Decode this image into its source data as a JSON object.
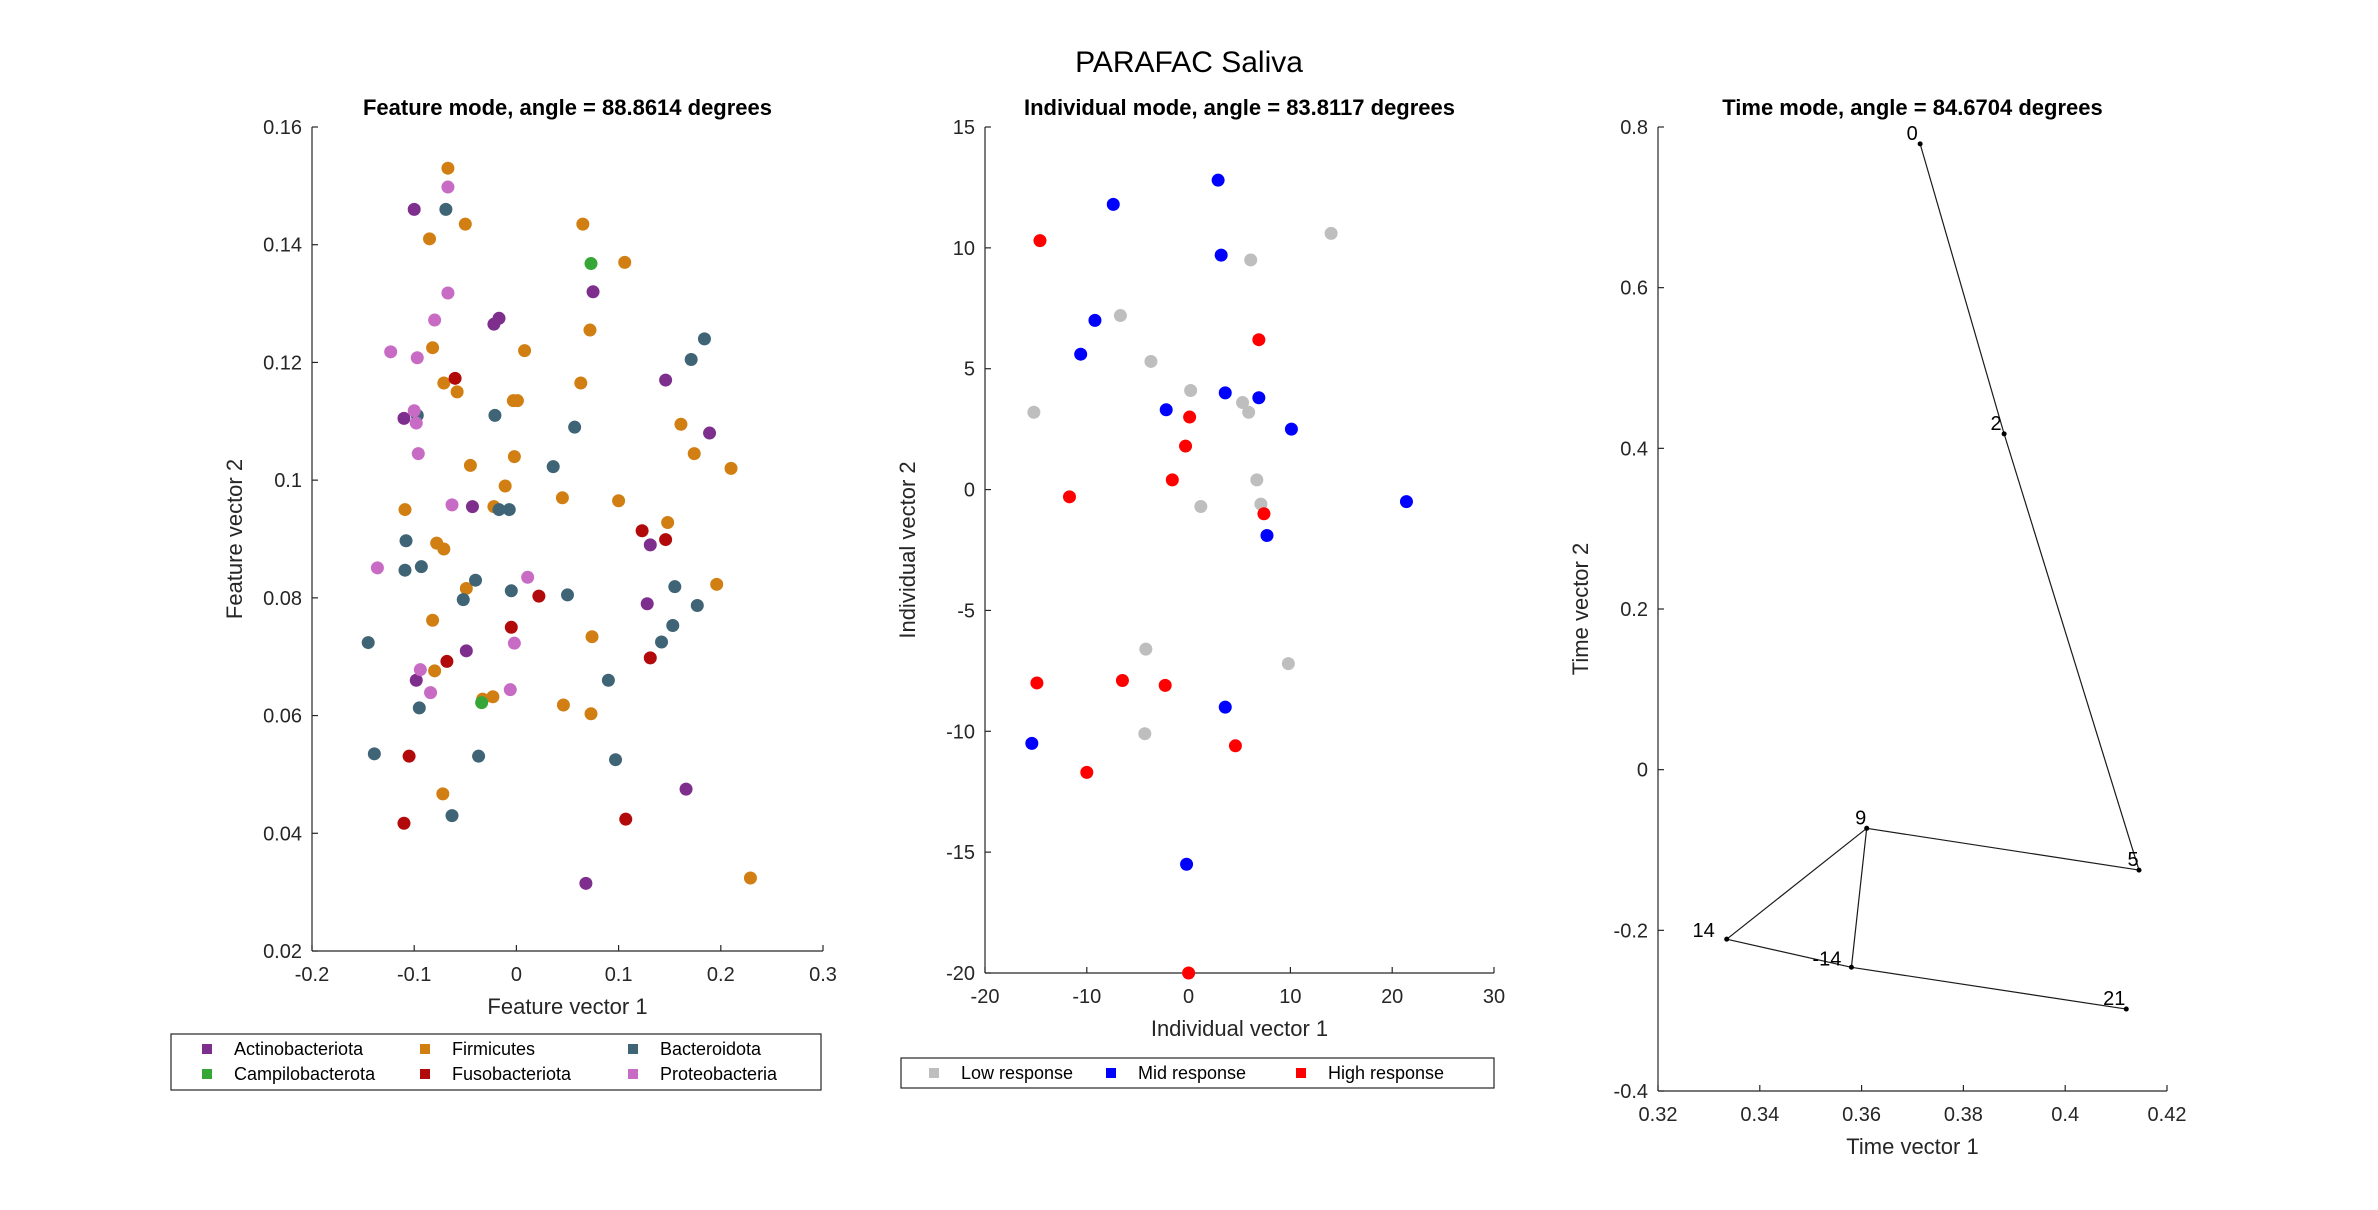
{
  "figure": {
    "title": "PARAFAC Saliva"
  },
  "chart_data": [
    {
      "type": "scatter",
      "title": "Feature mode, angle = 88.8614 degrees",
      "xlabel": "Feature vector 1",
      "ylabel": "Feature vector 2",
      "xlim": [
        -0.2,
        0.3
      ],
      "ylim": [
        0.02,
        0.16
      ],
      "xticks": [
        -0.2,
        -0.1,
        0,
        0.1,
        0.2,
        0.3
      ],
      "yticks": [
        0.02,
        0.04,
        0.06,
        0.08,
        0.1,
        0.12,
        0.14,
        0.16
      ],
      "xtick_labels": [
        "-0.2",
        "-0.1",
        "0",
        "0.1",
        "0.2",
        "0.3"
      ],
      "ytick_labels": [
        "0.02",
        "0.04",
        "0.06",
        "0.08",
        "0.1",
        "0.12",
        "0.14",
        "0.16"
      ],
      "legend_position": "bottom",
      "series": [
        {
          "name": "Actinobacteriota",
          "color": "#7E2F8E",
          "points": [
            [
              -0.1,
              0.146
            ],
            [
              -0.022,
              0.1265
            ],
            [
              -0.017,
              0.1275
            ],
            [
              0.075,
              0.132
            ],
            [
              -0.11,
              0.1105
            ],
            [
              -0.043,
              0.0955
            ],
            [
              0.146,
              0.117
            ],
            [
              0.189,
              0.108
            ],
            [
              -0.098,
              0.066
            ],
            [
              -0.049,
              0.071
            ],
            [
              0.128,
              0.079
            ],
            [
              0.131,
              0.089
            ],
            [
              0.166,
              0.0475
            ],
            [
              0.068,
              0.0315
            ]
          ]
        },
        {
          "name": "Firmicutes",
          "color": "#D17F12",
          "points": [
            [
              -0.067,
              0.153
            ],
            [
              -0.05,
              0.1435
            ],
            [
              -0.085,
              0.141
            ],
            [
              0.065,
              0.1435
            ],
            [
              0.106,
              0.137
            ],
            [
              -0.082,
              0.1225
            ],
            [
              0.008,
              0.122
            ],
            [
              0.072,
              0.1255
            ],
            [
              -0.071,
              0.1165
            ],
            [
              -0.058,
              0.115
            ],
            [
              0.001,
              0.1135
            ],
            [
              -0.003,
              0.1135
            ],
            [
              0.063,
              0.1165
            ],
            [
              -0.045,
              0.1025
            ],
            [
              -0.002,
              0.104
            ],
            [
              0.161,
              0.1095
            ],
            [
              0.174,
              0.1045
            ],
            [
              0.21,
              0.102
            ],
            [
              -0.109,
              0.095
            ],
            [
              -0.022,
              0.0955
            ],
            [
              -0.011,
              0.099
            ],
            [
              0.045,
              0.097
            ],
            [
              0.1,
              0.0965
            ],
            [
              -0.078,
              0.0893
            ],
            [
              -0.071,
              0.0883
            ],
            [
              0.148,
              0.0928
            ],
            [
              -0.049,
              0.0816
            ],
            [
              -0.082,
              0.0762
            ],
            [
              0.196,
              0.0823
            ],
            [
              -0.08,
              0.0676
            ],
            [
              0.074,
              0.0734
            ],
            [
              -0.023,
              0.0632
            ],
            [
              -0.033,
              0.0628
            ],
            [
              0.046,
              0.0618
            ],
            [
              0.073,
              0.0603
            ],
            [
              -0.072,
              0.0467
            ],
            [
              0.229,
              0.0324
            ]
          ]
        },
        {
          "name": "Bacteroidota",
          "color": "#3F6475",
          "points": [
            [
              -0.069,
              0.146
            ],
            [
              0.184,
              0.124
            ],
            [
              0.171,
              0.1205
            ],
            [
              -0.097,
              0.111
            ],
            [
              -0.021,
              0.111
            ],
            [
              0.057,
              0.109
            ],
            [
              0.036,
              0.1023
            ],
            [
              -0.017,
              0.095
            ],
            [
              -0.007,
              0.095
            ],
            [
              -0.108,
              0.0897
            ],
            [
              -0.093,
              0.0853
            ],
            [
              -0.109,
              0.0847
            ],
            [
              -0.04,
              0.083
            ],
            [
              -0.005,
              0.0812
            ],
            [
              0.05,
              0.0805
            ],
            [
              -0.052,
              0.0797
            ],
            [
              0.155,
              0.0819
            ],
            [
              0.177,
              0.0787
            ],
            [
              0.153,
              0.0753
            ],
            [
              0.142,
              0.0725
            ],
            [
              -0.145,
              0.0724
            ],
            [
              0.09,
              0.066
            ],
            [
              -0.095,
              0.0613
            ],
            [
              0.097,
              0.0525
            ],
            [
              -0.139,
              0.0535
            ],
            [
              -0.037,
              0.0531
            ],
            [
              -0.063,
              0.043
            ]
          ]
        },
        {
          "name": "Campilobacterota",
          "color": "#36A637",
          "points": [
            [
              0.073,
              0.1368
            ],
            [
              -0.034,
              0.0622
            ]
          ]
        },
        {
          "name": "Fusobacteriota",
          "color": "#B20A0A",
          "points": [
            [
              -0.06,
              0.1173
            ],
            [
              0.123,
              0.0914
            ],
            [
              0.146,
              0.0899
            ],
            [
              0.022,
              0.0803
            ],
            [
              -0.005,
              0.075
            ],
            [
              -0.068,
              0.0692
            ],
            [
              0.131,
              0.0698
            ],
            [
              -0.105,
              0.0531
            ],
            [
              0.107,
              0.0424
            ],
            [
              -0.11,
              0.0417
            ]
          ]
        },
        {
          "name": "Proteobacteria",
          "color": "#C76BC4",
          "points": [
            [
              -0.067,
              0.1498
            ],
            [
              -0.067,
              0.1318
            ],
            [
              -0.08,
              0.1272
            ],
            [
              -0.123,
              0.1218
            ],
            [
              -0.097,
              0.1208
            ],
            [
              -0.1,
              0.1118
            ],
            [
              -0.098,
              0.1097
            ],
            [
              -0.096,
              0.1045
            ],
            [
              -0.063,
              0.0958
            ],
            [
              -0.136,
              0.0851
            ],
            [
              0.011,
              0.0835
            ],
            [
              -0.094,
              0.0678
            ],
            [
              -0.084,
              0.0639
            ],
            [
              -0.002,
              0.0723
            ],
            [
              -0.006,
              0.0644
            ]
          ]
        }
      ]
    },
    {
      "type": "scatter",
      "title": "Individual mode, angle = 83.8117 degrees",
      "xlabel": "Individual vector 1",
      "ylabel": "Individual vector 2",
      "xlim": [
        -20,
        30
      ],
      "ylim": [
        -20,
        15
      ],
      "xticks": [
        -20,
        -10,
        0,
        10,
        20,
        30
      ],
      "yticks": [
        -20,
        -15,
        -10,
        -5,
        0,
        5,
        10,
        15
      ],
      "xtick_labels": [
        "-20",
        "-10",
        "0",
        "10",
        "20",
        "30"
      ],
      "ytick_labels": [
        "-20",
        "-15",
        "-10",
        "-5",
        "0",
        "5",
        "10",
        "15"
      ],
      "legend_position": "bottom",
      "series": [
        {
          "name": "Low response",
          "color": "#BEBEBE",
          "points": [
            [
              14,
              10.6
            ],
            [
              6.1,
              9.5
            ],
            [
              -6.7,
              7.2
            ],
            [
              -3.7,
              5.3
            ],
            [
              0.2,
              4.1
            ],
            [
              -15.2,
              3.2
            ],
            [
              5.3,
              3.6
            ],
            [
              5.9,
              3.2
            ],
            [
              6.7,
              0.4
            ],
            [
              7.1,
              -0.6
            ],
            [
              1.2,
              -0.7
            ],
            [
              -4.2,
              -6.6
            ],
            [
              9.8,
              -7.2
            ],
            [
              -4.3,
              -10.1
            ]
          ]
        },
        {
          "name": "Mid response",
          "color": "#0000FF",
          "points": [
            [
              2.9,
              12.8
            ],
            [
              -7.4,
              11.8
            ],
            [
              3.2,
              9.7
            ],
            [
              -9.2,
              7
            ],
            [
              -10.6,
              5.6
            ],
            [
              3.6,
              4
            ],
            [
              6.9,
              3.8
            ],
            [
              -2.2,
              3.3
            ],
            [
              10.1,
              2.5
            ],
            [
              21.4,
              -0.5
            ],
            [
              7.7,
              -1.9
            ],
            [
              3.6,
              -9
            ],
            [
              -15.4,
              -10.5
            ],
            [
              -0.2,
              -15.5
            ]
          ]
        },
        {
          "name": "High response",
          "color": "#FF0000",
          "points": [
            [
              -14.6,
              10.3
            ],
            [
              6.9,
              6.2
            ],
            [
              0.1,
              3
            ],
            [
              -0.3,
              1.8
            ],
            [
              -1.6,
              0.4
            ],
            [
              -11.7,
              -0.3
            ],
            [
              7.4,
              -1
            ],
            [
              -14.9,
              -8
            ],
            [
              -6.5,
              -7.9
            ],
            [
              -2.3,
              -8.1
            ],
            [
              4.6,
              -10.6
            ],
            [
              -10,
              -11.7
            ],
            [
              0,
              -20
            ]
          ]
        }
      ]
    },
    {
      "type": "line",
      "title": "Time mode, angle = 84.6704 degrees",
      "xlabel": "Time vector 1",
      "ylabel": "Time vector 2",
      "xlim": [
        0.32,
        0.42
      ],
      "ylim": [
        -0.4,
        0.8
      ],
      "xticks": [
        0.32,
        0.34,
        0.36,
        0.38,
        0.4,
        0.42
      ],
      "yticks": [
        -0.4,
        -0.2,
        0,
        0.2,
        0.4,
        0.6,
        0.8
      ],
      "xtick_labels": [
        "0.32",
        "0.34",
        "0.36",
        "0.38",
        "0.4",
        "0.42"
      ],
      "ytick_labels": [
        "-0.4",
        "-0.2",
        "0",
        "0.2",
        "0.4",
        "0.6",
        "0.8"
      ],
      "points": [
        {
          "label": "0",
          "x": 0.3715,
          "y": 0.779
        },
        {
          "label": "2",
          "x": 0.388,
          "y": 0.418
        },
        {
          "label": "5",
          "x": 0.4145,
          "y": -0.125
        },
        {
          "label": "9",
          "x": 0.361,
          "y": -0.073
        },
        {
          "label": "14",
          "x": 0.3335,
          "y": -0.211
        },
        {
          "label": "-14",
          "x": 0.358,
          "y": -0.246
        },
        {
          "label": "21",
          "x": 0.412,
          "y": -0.298
        }
      ],
      "edges": [
        [
          "0",
          "2"
        ],
        [
          "2",
          "5"
        ],
        [
          "5",
          "9"
        ],
        [
          "9",
          "14"
        ],
        [
          "9",
          "-14"
        ],
        [
          "14",
          "-14"
        ],
        [
          "-14",
          "21"
        ]
      ]
    }
  ]
}
